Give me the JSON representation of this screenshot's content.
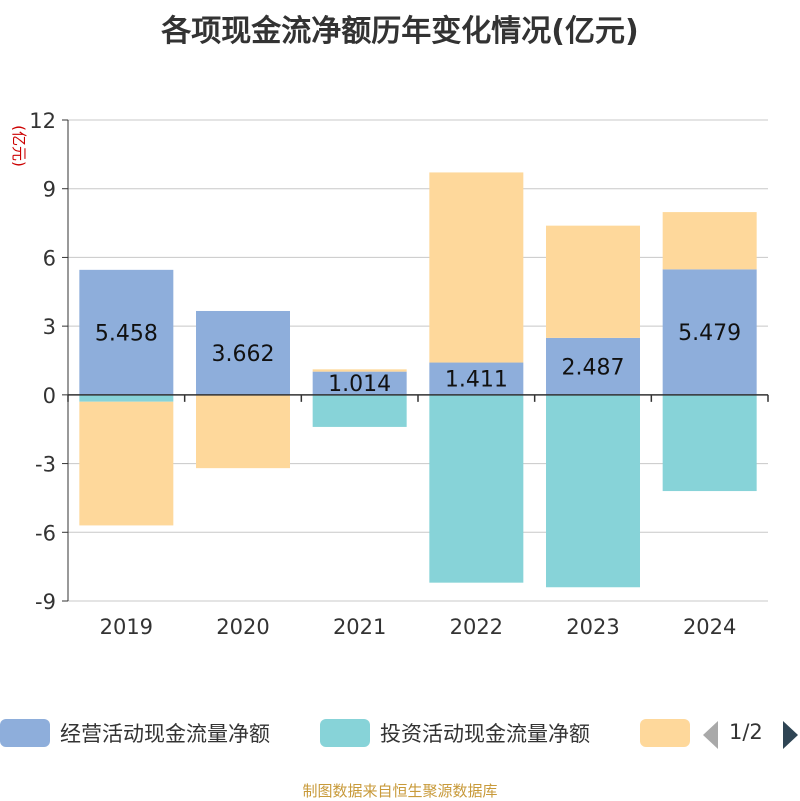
{
  "title": "各项现金流净额历年变化情况(亿元)",
  "source_note": "制图数据来自恒生聚源数据库",
  "legend": {
    "items": [
      {
        "label": "经营活动现金流量净额",
        "color": "#8eaedb"
      },
      {
        "label": "投资活动现金流量净额",
        "color": "#87d3d8"
      },
      {
        "label": "",
        "color": "#fed89b"
      }
    ],
    "page": "1/2"
  },
  "chart_data": {
    "type": "bar",
    "stacked": true,
    "title": "各项现金流净额历年变化情况(亿元)",
    "ylabel": "(亿元)",
    "ylim": [
      -9,
      12
    ],
    "yticks": [
      12,
      9,
      6,
      3,
      0,
      -3,
      -6,
      -9
    ],
    "categories": [
      "2019",
      "2020",
      "2021",
      "2022",
      "2023",
      "2024"
    ],
    "series": [
      {
        "name": "经营活动现金流量净额",
        "color": "#8eaedb",
        "values": [
          5.458,
          3.662,
          1.014,
          1.411,
          2.487,
          5.479
        ],
        "show_labels": true
      },
      {
        "name": "投资活动现金流量净额",
        "color": "#87d3d8",
        "values": [
          -0.3,
          0.0,
          -1.4,
          -8.2,
          -8.4,
          -4.2
        ]
      },
      {
        "name": "",
        "color": "#fed89b",
        "values": [
          -5.4,
          -3.2,
          0.1,
          8.3,
          4.9,
          2.5
        ]
      }
    ],
    "value_labels": [
      "5.458",
      "3.662",
      "1.014",
      "1.411",
      "2.487",
      "5.479"
    ],
    "grid": true,
    "legend_position": "bottom"
  }
}
